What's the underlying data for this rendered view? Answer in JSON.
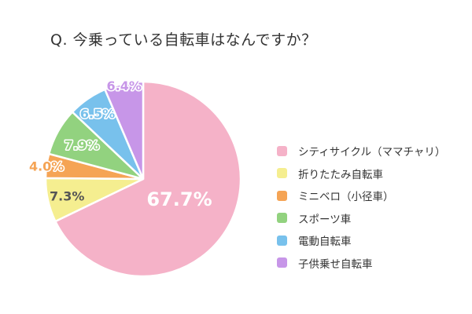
{
  "chart_data": {
    "type": "pie",
    "title": "Q. 今乗っている自転車はなんですか？",
    "start": "top",
    "direction": "clockwise",
    "legend_position": "right",
    "slices": [
      {
        "label": "シティサイクル（ママチャリ）",
        "value": 67.7,
        "display": "67.7%",
        "color": "#f5b2c8",
        "label_color": "#ffffff"
      },
      {
        "label": "折りたたみ自転車",
        "value": 7.3,
        "display": "7.3%",
        "color": "#f5ee90",
        "label_color": "#555555"
      },
      {
        "label": "ミニベロ（小径車）",
        "value": 4.0,
        "display": "4.0%",
        "color": "#f5a455",
        "label_color": "#f5a455"
      },
      {
        "label": "スポーツ車",
        "value": 7.9,
        "display": "7.9%",
        "color": "#92d27f",
        "label_color": "#92d27f"
      },
      {
        "label": "電動自転車",
        "value": 6.5,
        "display": "6.5%",
        "color": "#78c1ec",
        "label_color": "#78c1ec"
      },
      {
        "label": "子供乗せ自転車",
        "value": 6.4,
        "display": "6.4%",
        "color": "#c796e8",
        "label_color": "#c796e8"
      }
    ]
  }
}
